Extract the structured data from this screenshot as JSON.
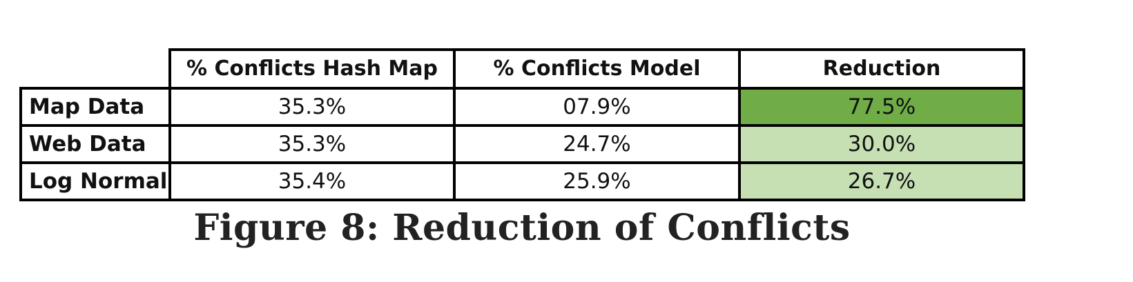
{
  "table": {
    "columns": [
      "% Conflicts Hash Map",
      "% Conflicts Model",
      "Reduction"
    ],
    "rows": [
      {
        "label": "Map Data",
        "hash_map": "35.3%",
        "model": "07.9%",
        "reduction": "77.5%"
      },
      {
        "label": "Web Data",
        "hash_map": "35.3%",
        "model": "24.7%",
        "reduction": "30.0%"
      },
      {
        "label": "Log Normal",
        "hash_map": "35.4%",
        "model": "25.9%",
        "reduction": "26.7%"
      }
    ],
    "colors": {
      "reduction_high": "#70ad47",
      "reduction_low": "#c6e0b4",
      "border": "#000000"
    }
  },
  "caption": "Figure 8: Reduction of Conflicts"
}
